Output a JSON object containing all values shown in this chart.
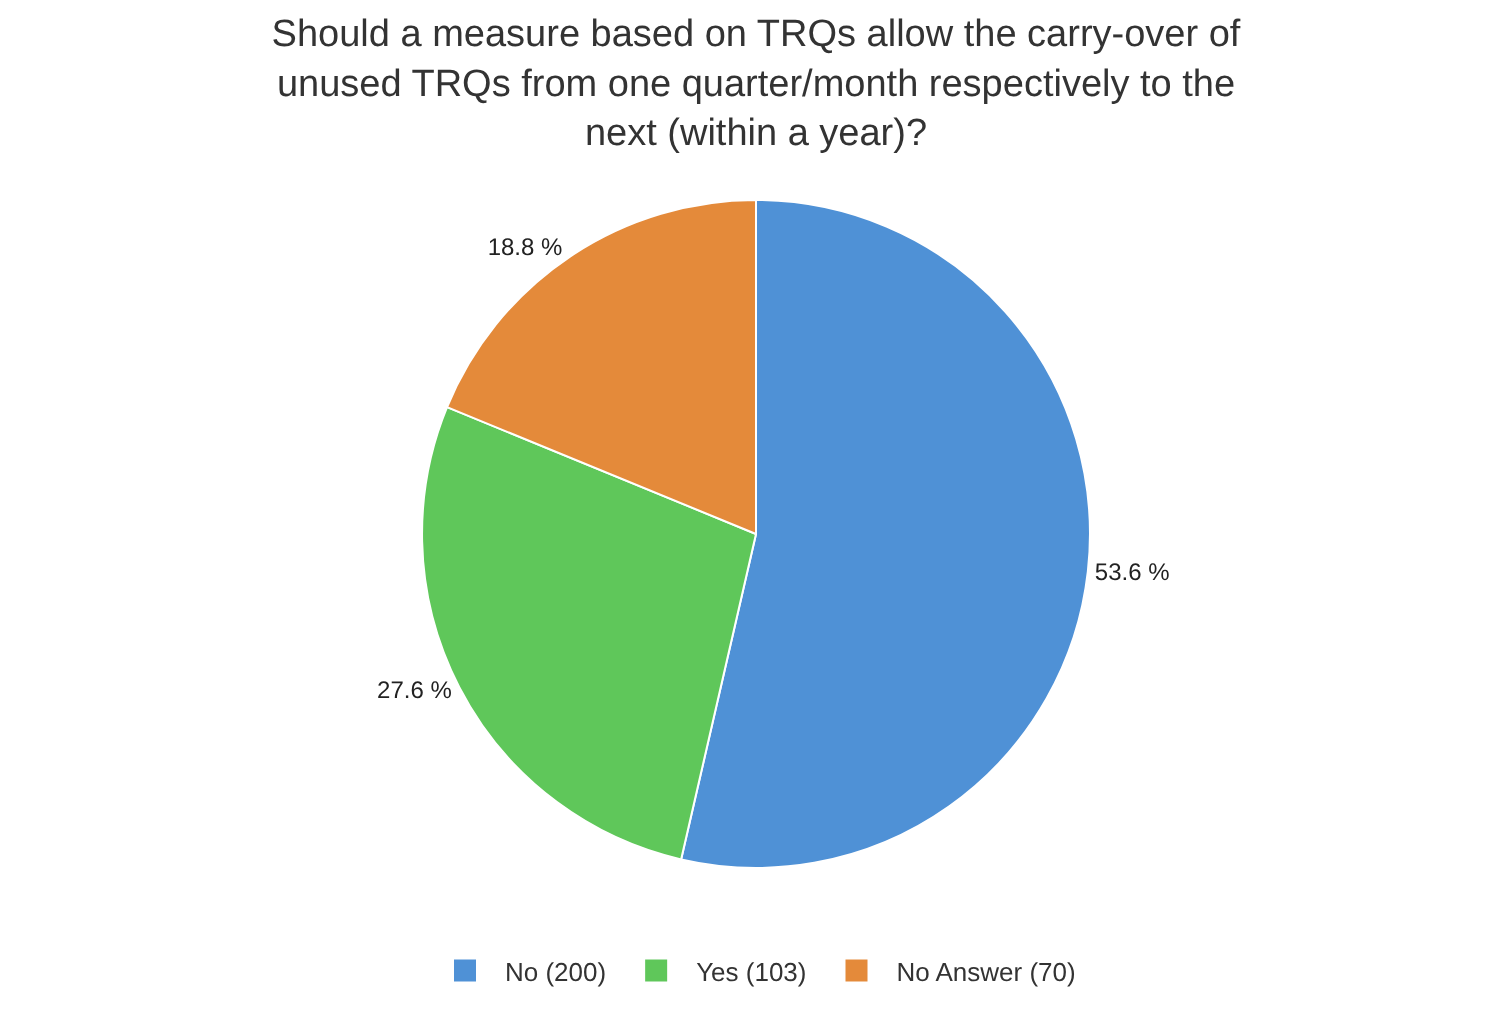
{
  "chart_data": {
    "type": "pie",
    "title": "Should a measure based on TRQs allow the carry-over of unused TRQs from one quarter/month respectively to the next (within a year)?",
    "categories": [
      "No (200)",
      "Yes (103)",
      "No Answer (70)"
    ],
    "values": [
      53.6,
      27.6,
      18.8
    ],
    "value_labels": [
      "53.6 %",
      "27.6 %",
      "18.8 %"
    ],
    "colors": [
      "#4f91d6",
      "#5fc75a",
      "#e48a3a"
    ],
    "legend": "bottom"
  }
}
